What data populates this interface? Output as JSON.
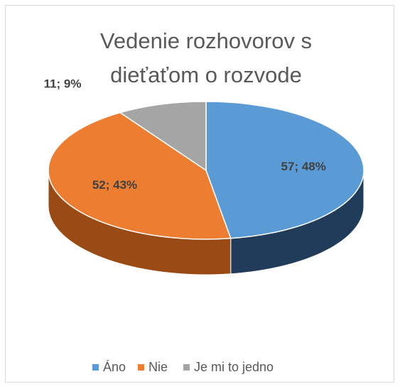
{
  "chart_data": {
    "type": "pie3d",
    "title": "Vedenie rozhovorov s dieťaťom o rozvode",
    "categories": [
      "Áno",
      "Nie",
      "Je mi to jedno"
    ],
    "values": [
      57,
      52,
      11
    ],
    "value_labels": [
      "57; 48%",
      "52; 43%",
      "11; 9%"
    ],
    "colors": [
      "#5b9bd5",
      "#ed7d31",
      "#a5a5a5"
    ],
    "side_colors": [
      "#203c5a",
      "#9a4a14",
      "#6b6b6b"
    ],
    "legend": "bottom"
  }
}
